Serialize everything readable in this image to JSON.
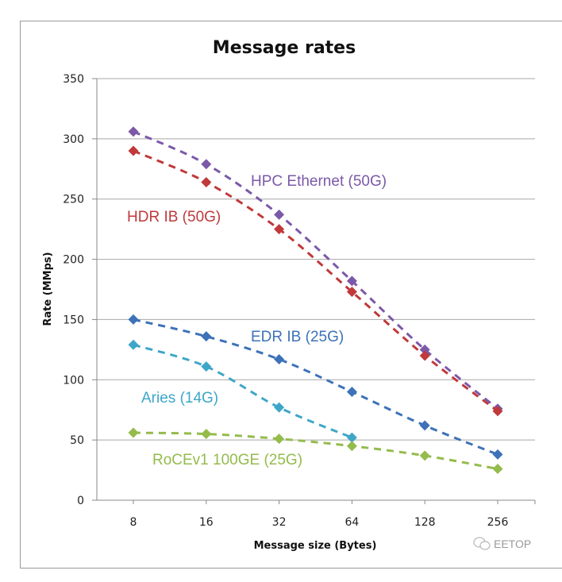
{
  "chart_data": {
    "type": "line",
    "title": "Message rates",
    "xlabel": "Message size (Bytes)",
    "ylabel": "Rate (MMps)",
    "categories": [
      "8",
      "16",
      "32",
      "64",
      "128",
      "256"
    ],
    "ylim": [
      0,
      350
    ],
    "yticks": [
      0,
      50,
      100,
      150,
      200,
      250,
      300,
      350
    ],
    "grid": true,
    "legend": "inline-labels",
    "line_style": "dashed",
    "marker": "diamond",
    "series": [
      {
        "name": "HPC Ethernet (50G)",
        "color": "#7b59a8",
        "values": [
          306,
          279,
          237,
          182,
          125,
          76
        ]
      },
      {
        "name": "HDR IB (50G)",
        "color": "#c0393b",
        "values": [
          290,
          264,
          225,
          173,
          120,
          74
        ]
      },
      {
        "name": "EDR IB (25G)",
        "color": "#3d72b8",
        "values": [
          150,
          136,
          117,
          90,
          62,
          38
        ]
      },
      {
        "name": "Aries (14G)",
        "color": "#3ea6c8",
        "values": [
          129,
          111,
          77,
          52,
          null,
          null
        ]
      },
      {
        "name": "RoCEv1 100GE (25G)",
        "color": "#94bb4c",
        "values": [
          56,
          55,
          51,
          45,
          37,
          26
        ]
      }
    ],
    "annotations": [
      {
        "text": "HPC Ethernet (50G)",
        "series": 0
      },
      {
        "text": "HDR IB (50G)",
        "series": 1
      },
      {
        "text": "EDR IB (25G)",
        "series": 2
      },
      {
        "text": "Aries (14G)",
        "series": 3
      },
      {
        "text": "RoCEv1 100GE (25G)",
        "series": 4
      }
    ]
  },
  "watermark": {
    "text": "EETOP",
    "icon": "wechat-icon"
  }
}
